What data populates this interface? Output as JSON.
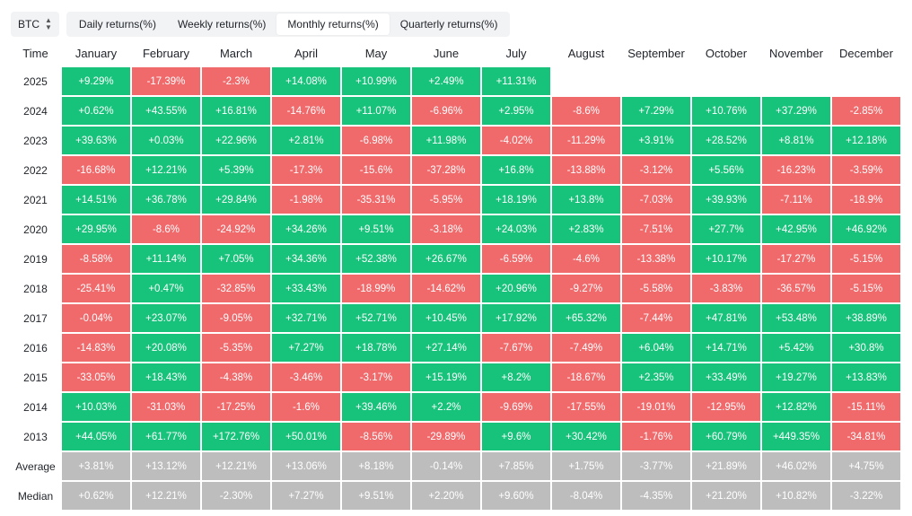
{
  "toolbar": {
    "asset": "BTC",
    "tabs": [
      {
        "label": "Daily returns(%)",
        "active": false
      },
      {
        "label": "Weekly returns(%)",
        "active": false
      },
      {
        "label": "Monthly returns(%)",
        "active": true
      },
      {
        "label": "Quarterly returns(%)",
        "active": false
      }
    ]
  },
  "table": {
    "time_header": "Time",
    "months": [
      "January",
      "February",
      "March",
      "April",
      "May",
      "June",
      "July",
      "August",
      "September",
      "October",
      "November",
      "December"
    ],
    "rows": [
      {
        "label": "2025",
        "values": [
          "+9.29%",
          "-17.39%",
          "-2.3%",
          "+14.08%",
          "+10.99%",
          "+2.49%",
          "+11.31%",
          "",
          "",
          "",
          "",
          ""
        ]
      },
      {
        "label": "2024",
        "values": [
          "+0.62%",
          "+43.55%",
          "+16.81%",
          "-14.76%",
          "+11.07%",
          "-6.96%",
          "+2.95%",
          "-8.6%",
          "+7.29%",
          "+10.76%",
          "+37.29%",
          "-2.85%"
        ]
      },
      {
        "label": "2023",
        "values": [
          "+39.63%",
          "+0.03%",
          "+22.96%",
          "+2.81%",
          "-6.98%",
          "+11.98%",
          "-4.02%",
          "-11.29%",
          "+3.91%",
          "+28.52%",
          "+8.81%",
          "+12.18%"
        ]
      },
      {
        "label": "2022",
        "values": [
          "-16.68%",
          "+12.21%",
          "+5.39%",
          "-17.3%",
          "-15.6%",
          "-37.28%",
          "+16.8%",
          "-13.88%",
          "-3.12%",
          "+5.56%",
          "-16.23%",
          "-3.59%"
        ]
      },
      {
        "label": "2021",
        "values": [
          "+14.51%",
          "+36.78%",
          "+29.84%",
          "-1.98%",
          "-35.31%",
          "-5.95%",
          "+18.19%",
          "+13.8%",
          "-7.03%",
          "+39.93%",
          "-7.11%",
          "-18.9%"
        ]
      },
      {
        "label": "2020",
        "values": [
          "+29.95%",
          "-8.6%",
          "-24.92%",
          "+34.26%",
          "+9.51%",
          "-3.18%",
          "+24.03%",
          "+2.83%",
          "-7.51%",
          "+27.7%",
          "+42.95%",
          "+46.92%"
        ]
      },
      {
        "label": "2019",
        "values": [
          "-8.58%",
          "+11.14%",
          "+7.05%",
          "+34.36%",
          "+52.38%",
          "+26.67%",
          "-6.59%",
          "-4.6%",
          "-13.38%",
          "+10.17%",
          "-17.27%",
          "-5.15%"
        ]
      },
      {
        "label": "2018",
        "values": [
          "-25.41%",
          "+0.47%",
          "-32.85%",
          "+33.43%",
          "-18.99%",
          "-14.62%",
          "+20.96%",
          "-9.27%",
          "-5.58%",
          "-3.83%",
          "-36.57%",
          "-5.15%"
        ]
      },
      {
        "label": "2017",
        "values": [
          "-0.04%",
          "+23.07%",
          "-9.05%",
          "+32.71%",
          "+52.71%",
          "+10.45%",
          "+17.92%",
          "+65.32%",
          "-7.44%",
          "+47.81%",
          "+53.48%",
          "+38.89%"
        ]
      },
      {
        "label": "2016",
        "values": [
          "-14.83%",
          "+20.08%",
          "-5.35%",
          "+7.27%",
          "+18.78%",
          "+27.14%",
          "-7.67%",
          "-7.49%",
          "+6.04%",
          "+14.71%",
          "+5.42%",
          "+30.8%"
        ]
      },
      {
        "label": "2015",
        "values": [
          "-33.05%",
          "+18.43%",
          "-4.38%",
          "-3.46%",
          "-3.17%",
          "+15.19%",
          "+8.2%",
          "-18.67%",
          "+2.35%",
          "+33.49%",
          "+19.27%",
          "+13.83%"
        ]
      },
      {
        "label": "2014",
        "values": [
          "+10.03%",
          "-31.03%",
          "-17.25%",
          "-1.6%",
          "+39.46%",
          "+2.2%",
          "-9.69%",
          "-17.55%",
          "-19.01%",
          "-12.95%",
          "+12.82%",
          "-15.11%"
        ]
      },
      {
        "label": "2013",
        "values": [
          "+44.05%",
          "+61.77%",
          "+172.76%",
          "+50.01%",
          "-8.56%",
          "-29.89%",
          "+9.6%",
          "+30.42%",
          "-1.76%",
          "+60.79%",
          "+449.35%",
          "-34.81%"
        ]
      }
    ],
    "stats": [
      {
        "label": "Average",
        "values": [
          "+3.81%",
          "+13.12%",
          "+12.21%",
          "+13.06%",
          "+8.18%",
          "-0.14%",
          "+7.85%",
          "+1.75%",
          "-3.77%",
          "+21.89%",
          "+46.02%",
          "+4.75%"
        ]
      },
      {
        "label": "Median",
        "values": [
          "+0.62%",
          "+12.21%",
          "-2.30%",
          "+7.27%",
          "+9.51%",
          "+2.20%",
          "+9.60%",
          "-8.04%",
          "-4.35%",
          "+21.20%",
          "+10.82%",
          "-3.22%"
        ]
      }
    ]
  },
  "colors": {
    "positive": "#17c27a",
    "negative": "#f0696b",
    "stat": "#bdbdbd"
  }
}
